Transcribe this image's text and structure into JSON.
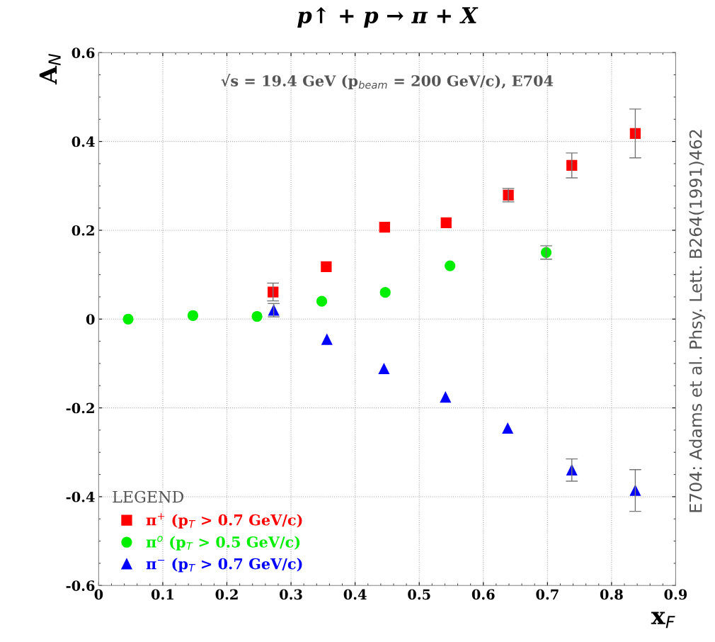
{
  "chart_data": {
    "type": "scatter",
    "title": "p↑ + p → π + X",
    "subtitle": "√s = 19.4 GeV (p$_{beam}$ = 200 GeV/c), E704",
    "xlabel": "x$_{F}$",
    "ylabel": "A$_{N}$",
    "legend_title": "LEGEND",
    "annotations": [
      "E704: Adams et al. Phsy. Lett. B264(1991)462"
    ],
    "series": [
      {
        "name": "π$^{+}$ (p$_{T}$ > 0.7 GeV/c)",
        "color": "#ff0000",
        "marker": "square",
        "x": [
          0.272,
          0.355,
          0.446,
          0.542,
          0.639,
          0.738,
          0.837
        ],
        "values": [
          0.061,
          0.118,
          0.207,
          0.217,
          0.279,
          0.346,
          0.418
        ],
        "errors": [
          0.02,
          null,
          null,
          null,
          0.015,
          0.028,
          0.055
        ]
      },
      {
        "name": "π$^{o}$ (p$_{T}$ > 0.5 GeV/c)",
        "color": "#00ee00",
        "marker": "circle",
        "x": [
          0.046,
          0.147,
          0.247,
          0.348,
          0.447,
          0.548,
          0.698
        ],
        "values": [
          0.0,
          0.008,
          0.006,
          0.04,
          0.06,
          0.12,
          0.15
        ],
        "errors": [
          null,
          null,
          null,
          null,
          null,
          null,
          0.015
        ]
      },
      {
        "name": "π$^{−}$ (p$_{T}$ > 0.7 GeV/c)",
        "color": "#0000ff",
        "marker": "triangle",
        "x": [
          0.273,
          0.356,
          0.445,
          0.541,
          0.638,
          0.738,
          0.837
        ],
        "values": [
          0.02,
          -0.046,
          -0.112,
          -0.176,
          -0.246,
          -0.34,
          -0.386
        ],
        "errors": [
          0.015,
          null,
          null,
          null,
          null,
          0.025,
          0.047
        ]
      }
    ],
    "xlim": [
      0,
      0.9
    ],
    "ylim": [
      -0.6,
      0.6
    ],
    "xticks": [
      0,
      0.1,
      0.2,
      0.3,
      0.4,
      0.5,
      0.6,
      0.7,
      0.8,
      0.9
    ],
    "yticks": [
      -0.6,
      -0.4,
      -0.2,
      0,
      0.2,
      0.4,
      0.6
    ],
    "grid": true,
    "legend": "bottom left"
  }
}
